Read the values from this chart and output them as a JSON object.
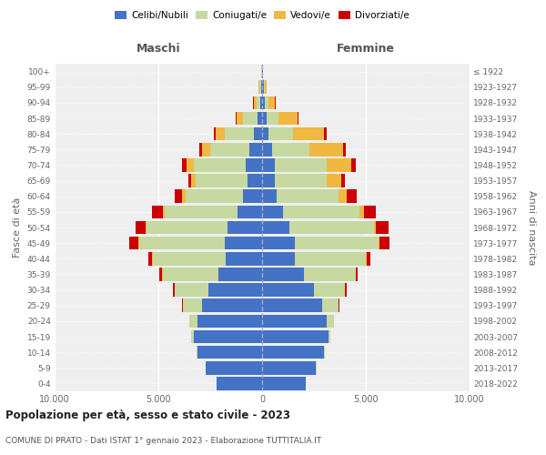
{
  "age_groups": [
    "0-4",
    "5-9",
    "10-14",
    "15-19",
    "20-24",
    "25-29",
    "30-34",
    "35-39",
    "40-44",
    "45-49",
    "50-54",
    "55-59",
    "60-64",
    "65-69",
    "70-74",
    "75-79",
    "80-84",
    "85-89",
    "90-94",
    "95-99",
    "100+"
  ],
  "birth_years": [
    "2018-2022",
    "2013-2017",
    "2008-2012",
    "2003-2007",
    "1998-2002",
    "1993-1997",
    "1988-1992",
    "1983-1987",
    "1978-1982",
    "1973-1977",
    "1968-1972",
    "1963-1967",
    "1958-1962",
    "1953-1957",
    "1948-1952",
    "1943-1947",
    "1938-1942",
    "1933-1937",
    "1928-1932",
    "1923-1927",
    "≤ 1922"
  ],
  "males": {
    "celibi": [
      2200,
      2700,
      3100,
      3300,
      3100,
      2900,
      2600,
      2100,
      1750,
      1800,
      1650,
      1200,
      900,
      700,
      800,
      600,
      400,
      200,
      80,
      60,
      20
    ],
    "coniugati": [
      5,
      10,
      40,
      100,
      400,
      900,
      1600,
      2700,
      3500,
      4100,
      3900,
      3500,
      2800,
      2500,
      2500,
      1900,
      1400,
      700,
      200,
      80,
      10
    ],
    "vedovi": [
      2,
      2,
      2,
      5,
      5,
      5,
      10,
      20,
      40,
      60,
      80,
      100,
      150,
      200,
      350,
      400,
      450,
      350,
      120,
      30,
      5
    ],
    "divorziati": [
      2,
      2,
      2,
      5,
      15,
      40,
      100,
      150,
      200,
      450,
      450,
      500,
      350,
      170,
      200,
      130,
      80,
      30,
      20,
      10,
      2
    ]
  },
  "females": {
    "nubili": [
      2100,
      2600,
      3000,
      3200,
      3100,
      2900,
      2500,
      2000,
      1600,
      1600,
      1300,
      1000,
      700,
      600,
      600,
      500,
      300,
      200,
      120,
      80,
      25
    ],
    "coniugate": [
      3,
      10,
      30,
      80,
      350,
      800,
      1500,
      2500,
      3400,
      4000,
      4100,
      3700,
      3000,
      2500,
      2500,
      1800,
      1200,
      600,
      200,
      60,
      8
    ],
    "vedove": [
      2,
      2,
      2,
      3,
      5,
      5,
      10,
      20,
      40,
      60,
      100,
      200,
      400,
      700,
      1200,
      1600,
      1500,
      900,
      300,
      60,
      5
    ],
    "divorziate": [
      2,
      2,
      2,
      5,
      10,
      20,
      50,
      100,
      200,
      500,
      600,
      600,
      450,
      200,
      200,
      140,
      100,
      40,
      25,
      15,
      2
    ]
  },
  "colors": {
    "celibi": "#4472c4",
    "coniugati": "#c5d9a0",
    "vedovi": "#f0b840",
    "divorziati": "#cc0000"
  },
  "xlim": 10000,
  "xticks": [
    -10000,
    -5000,
    0,
    5000,
    10000
  ],
  "xtick_labels": [
    "10.000",
    "5.000",
    "0",
    "5.000",
    "10.000"
  ],
  "title": "Popolazione per età, sesso e stato civile - 2023",
  "subtitle": "COMUNE DI PRATO - Dati ISTAT 1° gennaio 2023 - Elaborazione TUTTITALIA.IT",
  "ylabel_left": "Fasce di età",
  "ylabel_right": "Anni di nascita",
  "header_left": "Maschi",
  "header_right": "Femmine",
  "legend_labels": [
    "Celibi/Nubili",
    "Coniugati/e",
    "Vedovi/e",
    "Divorziati/e"
  ],
  "bg_color": "#efefef",
  "grid_color": "white",
  "bar_edge_color": "white"
}
